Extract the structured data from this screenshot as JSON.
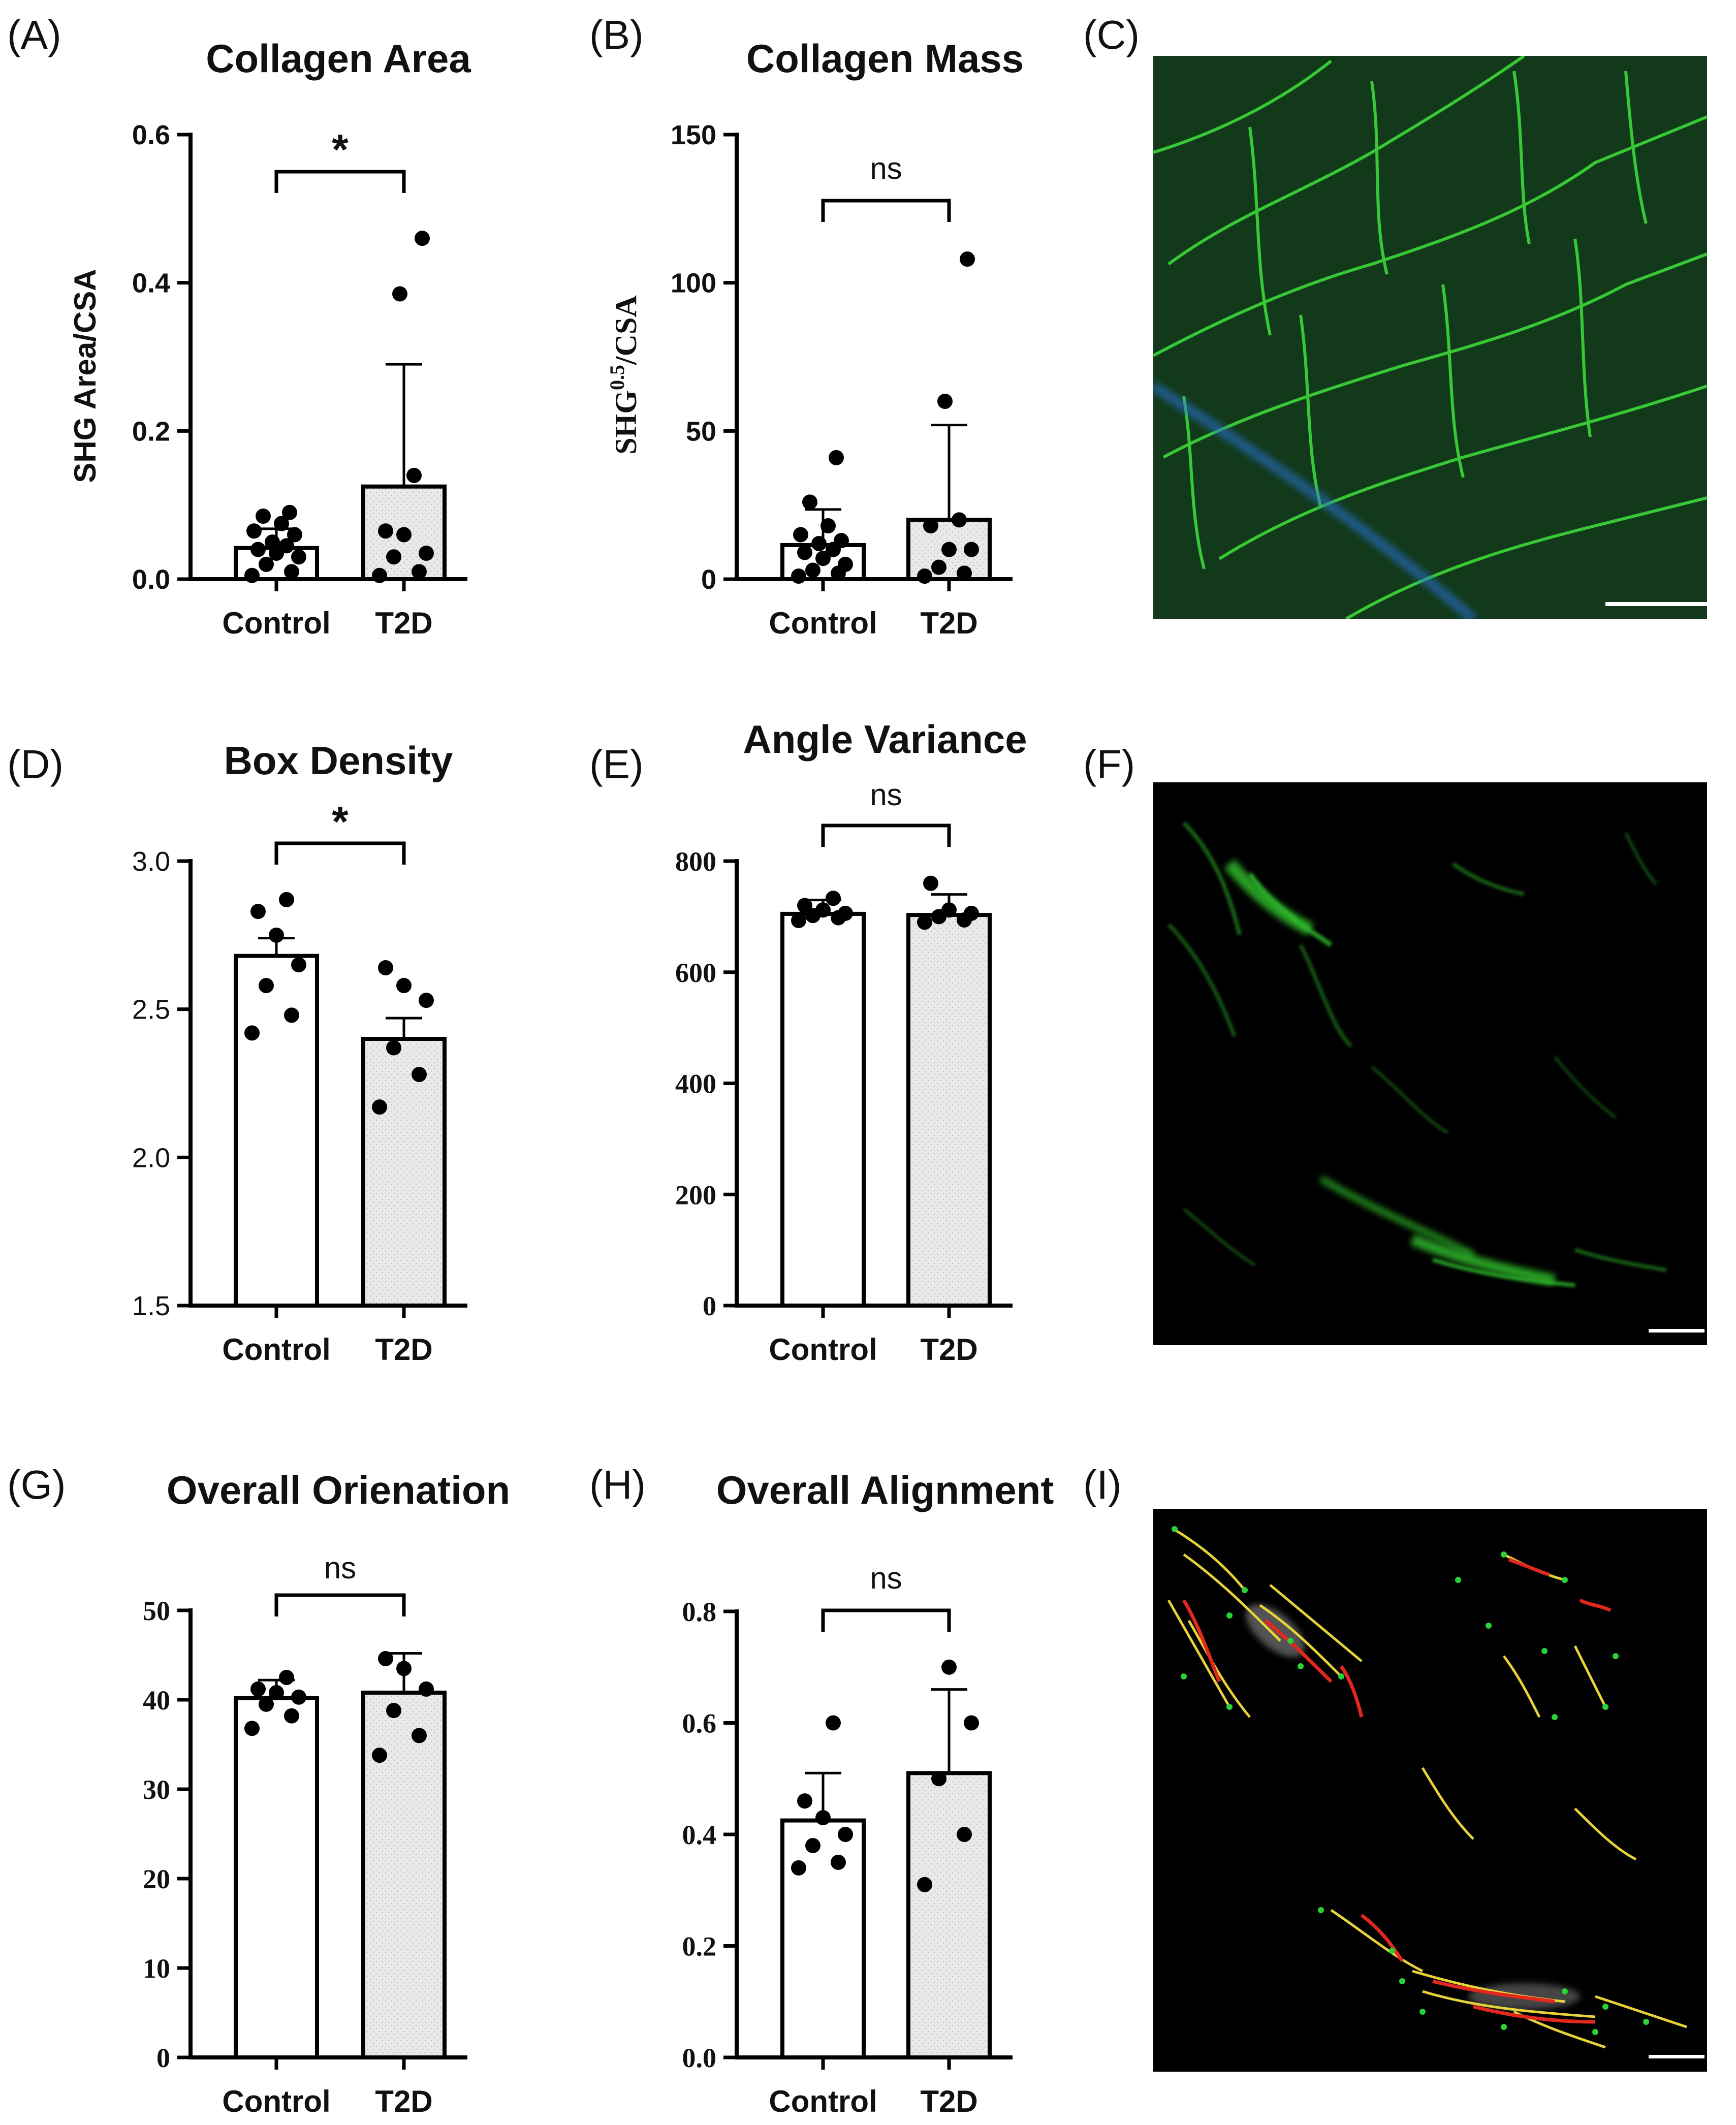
{
  "panel_labels": [
    "(A)",
    "(B)",
    "(C)",
    "(D)",
    "(E)",
    "(F)",
    "(G)",
    "(H)",
    "(I)"
  ],
  "colors": {
    "axis": "#000000",
    "control_bar_fill": "#ffffff",
    "t2d_bar_fill": "#e9e9e9",
    "point": "#000000",
    "image_background": "#000000",
    "collagen_signal": "#3cc832",
    "nuclei_signal": "#2a6fd6",
    "fiber_overlay_yellow": "#e8d23a",
    "fiber_overlay_red": "#e0281e",
    "fiber_overlay_green_dots": "#2ad23a",
    "scale_bar": "#ffffff"
  },
  "images": [
    {
      "panel": "(C)",
      "kind": "fluorescence micrograph with scale bar"
    },
    {
      "panel": "(F)",
      "kind": "SHG collagen fiber micrograph with scale bar"
    },
    {
      "panel": "(I)",
      "kind": "fiber detection overlay with scale bar"
    }
  ],
  "chart_data": [
    {
      "panel": "(A)",
      "type": "bar",
      "title": "Collagen Area",
      "xlabel": "",
      "ylabel": "SHG Area/CSA",
      "ylim": [
        0,
        0.6
      ],
      "yticks": [
        0.0,
        0.2,
        0.4,
        0.6
      ],
      "ytick_labels": [
        "0.0",
        "0.2",
        "0.4",
        "0.6"
      ],
      "tick_font": "sans",
      "categories": [
        "Control",
        "T2D"
      ],
      "values": [
        0.042,
        0.125
      ],
      "error_upper": [
        0.068,
        0.29
      ],
      "points": [
        [
          0.005,
          0.01,
          0.02,
          0.03,
          0.035,
          0.04,
          0.045,
          0.05,
          0.06,
          0.065,
          0.075,
          0.085,
          0.09
        ],
        [
          0.005,
          0.01,
          0.03,
          0.035,
          0.06,
          0.065,
          0.14,
          0.385,
          0.46
        ]
      ],
      "comparison": {
        "label": "*",
        "between": [
          "Control",
          "T2D"
        ]
      }
    },
    {
      "panel": "(B)",
      "type": "bar",
      "title": "Collagen Mass",
      "xlabel": "",
      "ylabel": "SHG0.5/CSA",
      "ylim": [
        0,
        150
      ],
      "yticks": [
        0,
        50,
        100,
        150
      ],
      "ytick_labels": [
        "0",
        "50",
        "100",
        "150"
      ],
      "tick_font": "sans",
      "categories": [
        "Control",
        "T2D"
      ],
      "values": [
        11.5,
        20
      ],
      "error_upper": [
        23.5,
        52
      ],
      "points": [
        [
          1,
          2,
          3,
          5,
          7,
          9,
          10,
          12,
          13,
          15,
          18,
          26,
          41
        ],
        [
          1,
          2,
          4,
          10,
          10,
          18,
          20,
          60,
          108
        ]
      ],
      "comparison": {
        "label": "ns",
        "between": [
          "Control",
          "T2D"
        ]
      }
    },
    {
      "panel": "(D)",
      "type": "bar",
      "title": "Box Density",
      "xlabel": "",
      "ylabel": "",
      "ylim": [
        1.5,
        3.0
      ],
      "yticks": [
        1.5,
        2.0,
        2.5,
        3.0
      ],
      "ytick_labels": [
        "1.5",
        "2.0",
        "2.5",
        "3.0"
      ],
      "tick_font": "sans-light",
      "categories": [
        "Control",
        "T2D"
      ],
      "values": [
        2.68,
        2.4
      ],
      "error_upper": [
        2.74,
        2.47
      ],
      "points": [
        [
          2.42,
          2.48,
          2.58,
          2.65,
          2.75,
          2.83,
          2.87
        ],
        [
          2.17,
          2.28,
          2.37,
          2.53,
          2.58,
          2.64
        ]
      ],
      "comparison": {
        "label": "*",
        "between": [
          "Control",
          "T2D"
        ]
      }
    },
    {
      "panel": "(E)",
      "type": "bar",
      "title": "Angle Variance",
      "xlabel": "",
      "ylabel": "",
      "ylim": [
        0,
        800
      ],
      "yticks": [
        0,
        200,
        400,
        600,
        800
      ],
      "ytick_labels": [
        "0",
        "200",
        "400",
        "600",
        "800"
      ],
      "tick_font": "serif",
      "categories": [
        "Control",
        "T2D"
      ],
      "values": [
        705,
        703
      ],
      "error_upper": [
        730,
        740
      ],
      "points": [
        [
          693,
          698,
          702,
          706,
          712,
          720,
          733
        ],
        [
          690,
          694,
          700,
          706,
          712,
          760
        ]
      ],
      "comparison": {
        "label": "ns",
        "between": [
          "Control",
          "T2D"
        ]
      }
    },
    {
      "panel": "(G)",
      "type": "bar",
      "title": "Overall Orienation",
      "xlabel": "",
      "ylabel": "",
      "ylim": [
        0,
        50
      ],
      "yticks": [
        0,
        10,
        20,
        30,
        40,
        50
      ],
      "ytick_labels": [
        "0",
        "10",
        "20",
        "30",
        "40",
        "50"
      ],
      "tick_font": "serif",
      "categories": [
        "Control",
        "T2D"
      ],
      "values": [
        40.2,
        40.8
      ],
      "error_upper": [
        42.2,
        45.2
      ],
      "points": [
        [
          36.8,
          38.2,
          39.5,
          40.3,
          40.8,
          41.2,
          42.5
        ],
        [
          33.8,
          36.0,
          38.8,
          41.2,
          43.5,
          44.6
        ]
      ],
      "comparison": {
        "label": "ns",
        "between": [
          "Control",
          "T2D"
        ]
      }
    },
    {
      "panel": "(H)",
      "type": "bar",
      "title": "Overall Alignment",
      "xlabel": "",
      "ylabel": "",
      "ylim": [
        0.0,
        0.8
      ],
      "yticks": [
        0.0,
        0.2,
        0.4,
        0.6,
        0.8
      ],
      "ytick_labels": [
        "0.0",
        "0.2",
        "0.4",
        "0.6",
        "0.8"
      ],
      "tick_font": "serif",
      "categories": [
        "Control",
        "T2D"
      ],
      "values": [
        0.425,
        0.51
      ],
      "error_upper": [
        0.51,
        0.66
      ],
      "points": [
        [
          0.34,
          0.35,
          0.38,
          0.4,
          0.43,
          0.46,
          0.6
        ],
        [
          0.31,
          0.4,
          0.5,
          0.6,
          0.7
        ]
      ],
      "comparison": {
        "label": "ns",
        "between": [
          "Control",
          "T2D"
        ]
      }
    }
  ]
}
